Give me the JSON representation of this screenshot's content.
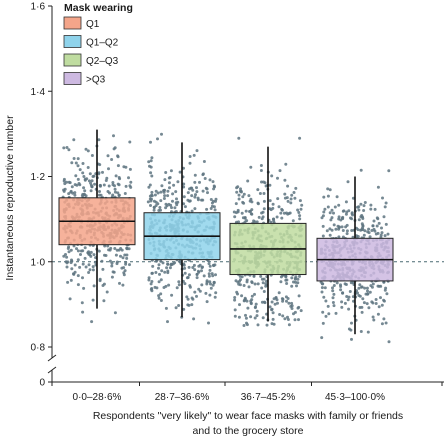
{
  "chart_data": {
    "type": "box",
    "title": "",
    "xlabel": "Respondents \"very likely\" to wear face masks with family or friends and to the grocery store",
    "xlabel_lines": [
      "Respondents \"very likely\" to wear face masks with family or friends",
      "and to the grocery store"
    ],
    "ylabel": "Instantaneous reproductive number",
    "ylim": [
      0.8,
      1.6
    ],
    "axis_break": true,
    "y_ticks": [
      {
        "value": 0.8,
        "label": "0·8"
      },
      {
        "value": 1.0,
        "label": "1·0"
      },
      {
        "value": 1.2,
        "label": "1·2"
      },
      {
        "value": 1.4,
        "label": "1·4"
      },
      {
        "value": 1.6,
        "label": "1·6"
      }
    ],
    "y_zero_label": "0",
    "reference_line": 1.0,
    "categories": [
      "0·0–28·6%",
      "28·7–36·6%",
      "36·7–45·2%",
      "45·3–100·0%"
    ],
    "legend": {
      "title": "Mask wearing",
      "placement": "top-left",
      "entries": [
        "Q1",
        "Q1–Q2",
        "Q2–Q3",
        ">Q3"
      ]
    },
    "series": [
      {
        "name": "Q1",
        "color": "#f4a58a",
        "box": {
          "whisker_low": 0.89,
          "q1": 1.04,
          "median": 1.095,
          "q3": 1.15,
          "whisker_high": 1.31
        },
        "points_range": [
          0.8,
          1.4
        ],
        "n_points": 480
      },
      {
        "name": "Q1–Q2",
        "color": "#8fd3eb",
        "box": {
          "whisker_low": 0.87,
          "q1": 1.005,
          "median": 1.06,
          "q3": 1.115,
          "whisker_high": 1.28
        },
        "points_range": [
          0.85,
          1.4
        ],
        "n_points": 480
      },
      {
        "name": "Q2–Q3",
        "color": "#bfdca0",
        "box": {
          "whisker_low": 0.86,
          "q1": 0.97,
          "median": 1.03,
          "q3": 1.09,
          "whisker_high": 1.27
        },
        "points_range": [
          0.85,
          1.39
        ],
        "n_points": 480
      },
      {
        "name": ">Q3",
        "color": "#cdb9e1",
        "box": {
          "whisker_low": 0.83,
          "q1": 0.955,
          "median": 1.005,
          "q3": 1.055,
          "whisker_high": 1.2
        },
        "points_range": [
          0.77,
          1.3
        ],
        "n_points": 480
      }
    ],
    "point_color": "#5e7480"
  }
}
